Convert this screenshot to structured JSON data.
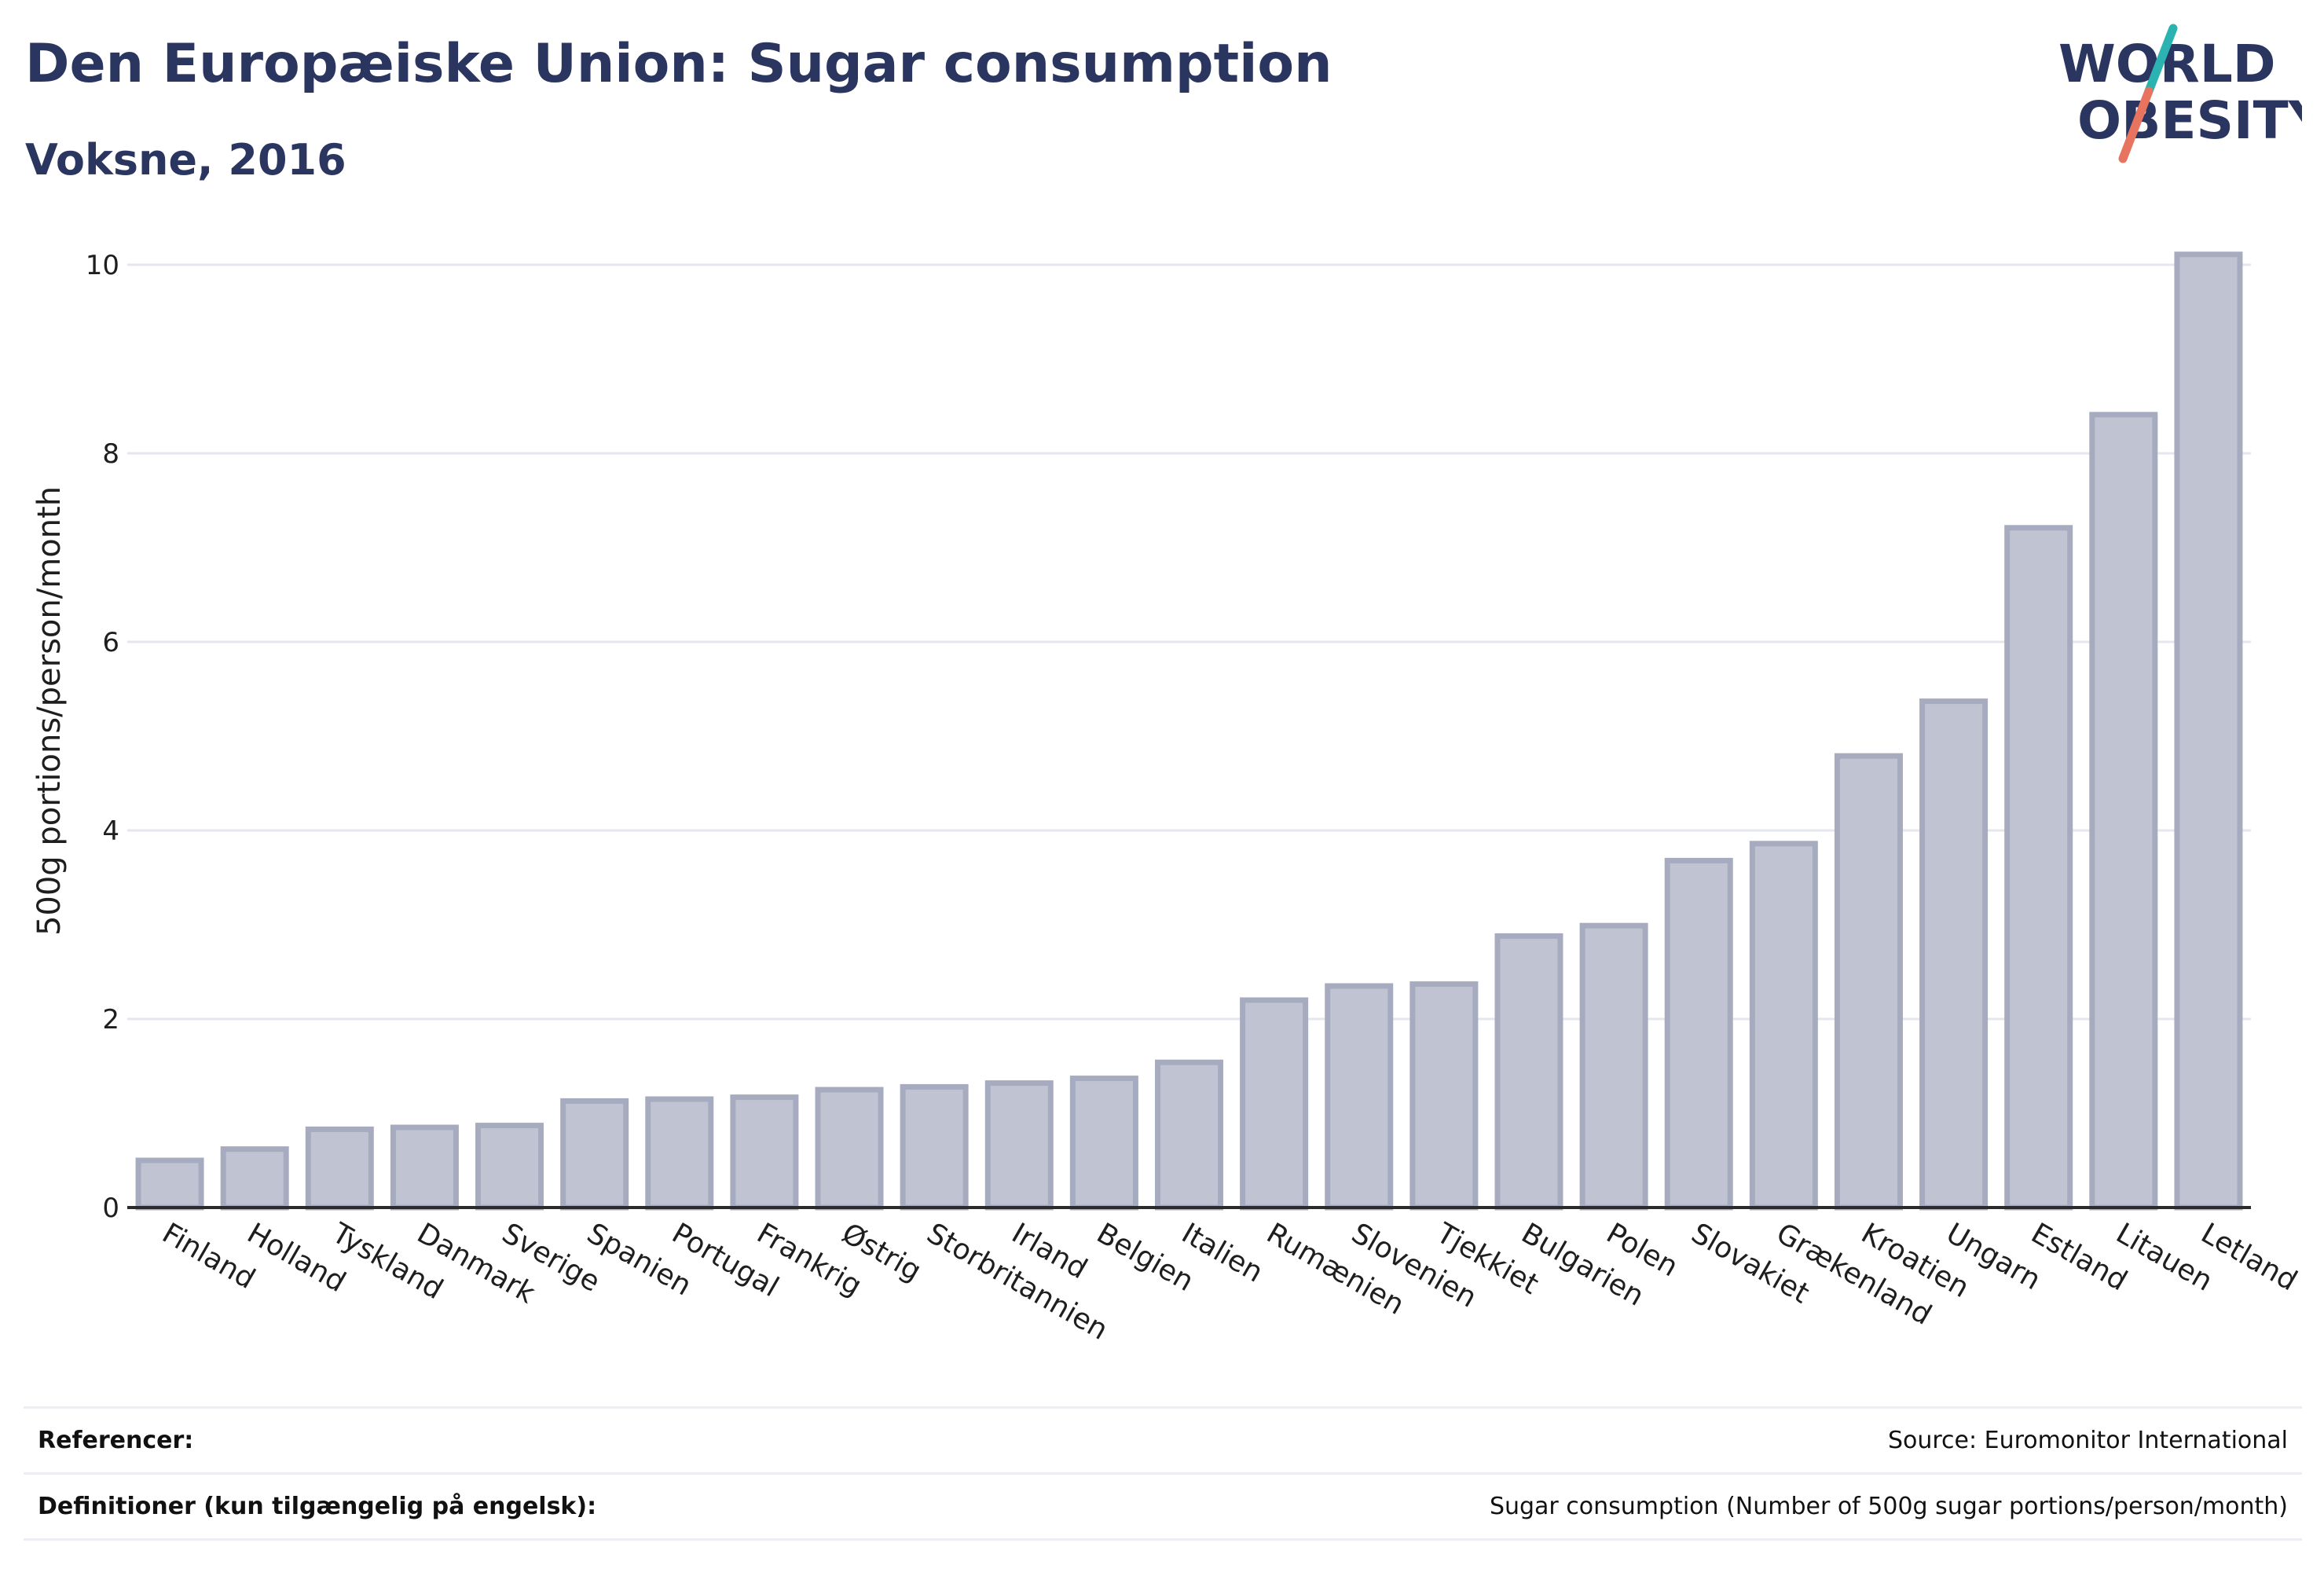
{
  "header": {
    "title": "Den Europæiske Union: Sugar consumption",
    "subtitle": "Voksne, 2016"
  },
  "logo": {
    "line1": "WORLD",
    "line2": "OBESITY",
    "colors": {
      "text": "#2a3560",
      "slash_top": "#2ab3b0",
      "slash_bottom": "#e8735f"
    }
  },
  "chart_data": {
    "type": "bar",
    "title": "Den Europæiske Union: Sugar consumption",
    "subtitle": "Voksne, 2016",
    "xlabel": "",
    "ylabel": "500g portions/person/month",
    "ylim": [
      0,
      10.5
    ],
    "yticks": [
      0,
      2,
      4,
      6,
      8,
      10
    ],
    "grid": true,
    "bar_color": "#c0c4d2",
    "categories": [
      "Finland",
      "Holland",
      "Tyskland",
      "Danmark",
      "Sverige",
      "Spanien",
      "Portugal",
      "Frankrig",
      "Østrig",
      "Storbritannien",
      "Irland",
      "Belgien",
      "Italien",
      "Rumænien",
      "Slovenien",
      "Tjekkiet",
      "Bulgarien",
      "Polen",
      "Slovakiet",
      "Grækenland",
      "Kroatien",
      "Ungarn",
      "Estland",
      "Litauen",
      "Letland"
    ],
    "values": [
      0.5,
      0.62,
      0.83,
      0.85,
      0.87,
      1.13,
      1.15,
      1.17,
      1.25,
      1.28,
      1.32,
      1.37,
      1.54,
      2.2,
      2.35,
      2.37,
      2.88,
      2.99,
      3.68,
      3.86,
      4.79,
      5.37,
      7.21,
      8.41,
      10.11
    ]
  },
  "footer": {
    "references_label": "Referencer:",
    "references_value": "Source: Euromonitor International",
    "definitions_label": "Definitioner (kun tilgængelig på engelsk):",
    "definitions_value": "Sugar consumption (Number of 500g sugar portions/person/month)"
  }
}
